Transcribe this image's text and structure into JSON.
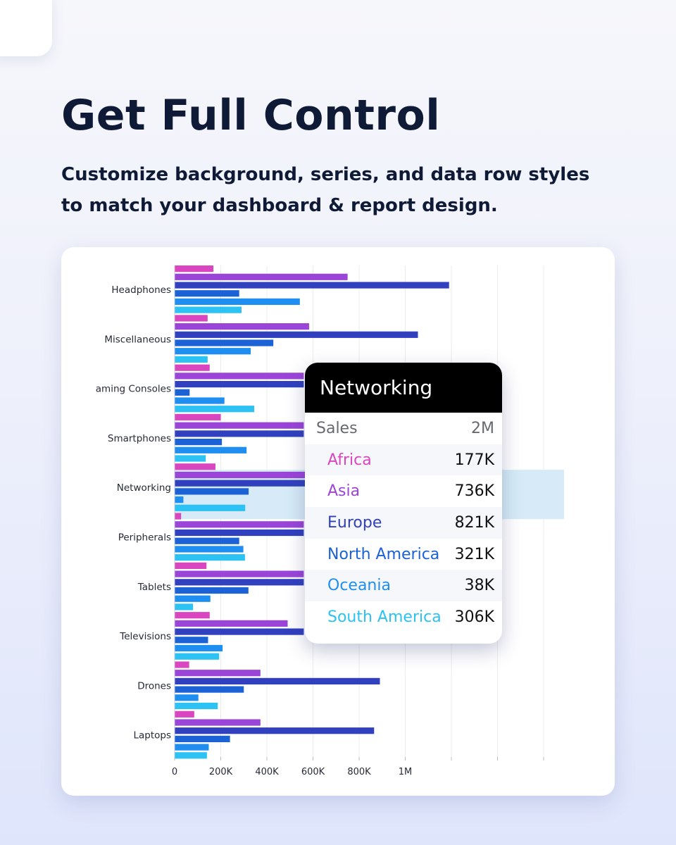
{
  "headline": "Get Full Control",
  "subhead_line1": "Customize background, series, and data row styles",
  "subhead_line2": "to match your dashboard & report design.",
  "colors": {
    "Africa": "#d946c0",
    "Asia": "#9b45d8",
    "Europe": "#3140bf",
    "North America": "#1a62d6",
    "Oceania": "#1e8ff0",
    "South America": "#2cc2f4",
    "highlight": "#d6ebf7"
  },
  "tooltip": {
    "title": "Networking",
    "summary_label": "Sales",
    "summary_value": "2M",
    "rows": [
      {
        "label": "Africa",
        "value": "177K"
      },
      {
        "label": "Asia",
        "value": "736K"
      },
      {
        "label": "Europe",
        "value": "821K"
      },
      {
        "label": "North America",
        "value": "321K"
      },
      {
        "label": "Oceania",
        "value": "38K"
      },
      {
        "label": "South America",
        "value": "306K"
      }
    ]
  },
  "chart_data": {
    "type": "bar",
    "orientation": "horizontal",
    "categories": [
      "Headphones",
      "Miscellaneous",
      "aming Consoles",
      "Smartphones",
      "Networking",
      "Peripherals",
      "Tablets",
      "Televisions",
      "Drones",
      "Laptops"
    ],
    "highlighted_category": "Networking",
    "series": [
      {
        "name": "Africa",
        "values": [
          168000,
          143000,
          152000,
          200000,
          177000,
          28000,
          138000,
          152000,
          63000,
          85000
        ]
      },
      {
        "name": "Asia",
        "values": [
          750000,
          583000,
          560000,
          560000,
          736000,
          560000,
          560000,
          490000,
          372000,
          372000
        ]
      },
      {
        "name": "Europe",
        "values": [
          1190000,
          1055000,
          560000,
          560000,
          821000,
          560000,
          560000,
          560000,
          890000,
          865000
        ]
      },
      {
        "name": "North America",
        "values": [
          280000,
          428000,
          65000,
          205000,
          321000,
          280000,
          320000,
          145000,
          300000,
          240000
        ]
      },
      {
        "name": "Oceania",
        "values": [
          543000,
          330000,
          216000,
          312000,
          38000,
          298000,
          155000,
          208000,
          103000,
          148000
        ]
      },
      {
        "name": "South America",
        "values": [
          290000,
          143000,
          345000,
          135000,
          306000,
          305000,
          80000,
          193000,
          187000,
          140000
        ]
      }
    ],
    "x_ticks": [
      "0",
      "200K",
      "400K",
      "600K",
      "800K",
      "1M",
      "",
      "",
      ""
    ],
    "x_tick_values": [
      0,
      200000,
      400000,
      600000,
      800000,
      1000000,
      1200000,
      1400000,
      1600000
    ],
    "xlim": [
      0,
      1700000
    ],
    "grid": "vertical",
    "legend": "none"
  }
}
